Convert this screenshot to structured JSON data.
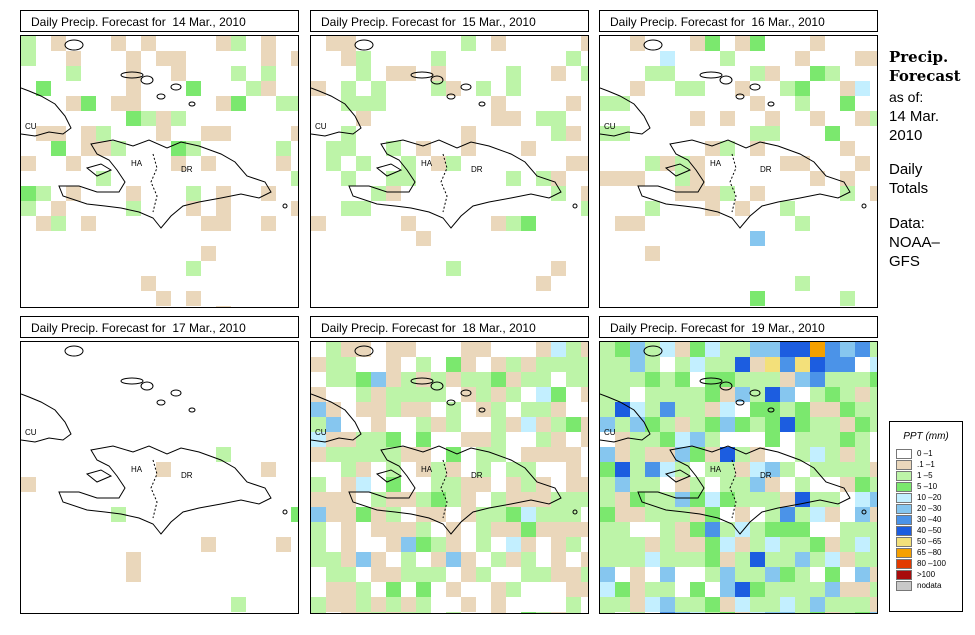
{
  "sidebar": {
    "title_line1": "Precip.",
    "title_line2": "Forecast",
    "asof_label": "as of:",
    "asof_date1": "14 Mar.",
    "asof_date2": "2010",
    "totals1": "Daily",
    "totals2": "Totals",
    "data_label": "Data:",
    "data_source1": "NOAA–",
    "data_source2": "GFS"
  },
  "map_labels": {
    "cuba": "CU",
    "haiti": "HA",
    "dr": "DR"
  },
  "panels": [
    {
      "title": "Daily Precip. Forecast for  14 Mar., 2010"
    },
    {
      "title": "Daily Precip. Forecast for  15 Mar., 2010"
    },
    {
      "title": "Daily Precip. Forecast for  16 Mar., 2010"
    },
    {
      "title": "Daily Precip. Forecast for  17 Mar., 2010"
    },
    {
      "title": "Daily Precip. Forecast for  18 Mar., 2010"
    },
    {
      "title": "Daily Precip. Forecast for  19 Mar., 2010"
    }
  ],
  "legend": {
    "title": "PPT (mm)",
    "classes": [
      {
        "label": "0 –1",
        "color": "#ffffff"
      },
      {
        "label": ".1 –1",
        "color": "#ead7bb"
      },
      {
        "label": "1 –5",
        "color": "#bdf4a8"
      },
      {
        "label": "5 –10",
        "color": "#7be86e"
      },
      {
        "label": "10 –20",
        "color": "#c3efff"
      },
      {
        "label": "20 –30",
        "color": "#86c6ef"
      },
      {
        "label": "30 –40",
        "color": "#4b93e8"
      },
      {
        "label": "40 –50",
        "color": "#1c5de0"
      },
      {
        "label": "50 –65",
        "color": "#f3e07a"
      },
      {
        "label": "65 –80",
        "color": "#f5a000"
      },
      {
        "label": "80 –100",
        "color": "#e23a00"
      },
      {
        "label": ">100",
        "color": "#a80c0c"
      },
      {
        "label": "nodata",
        "color": "#c8c8c8"
      }
    ]
  }
}
